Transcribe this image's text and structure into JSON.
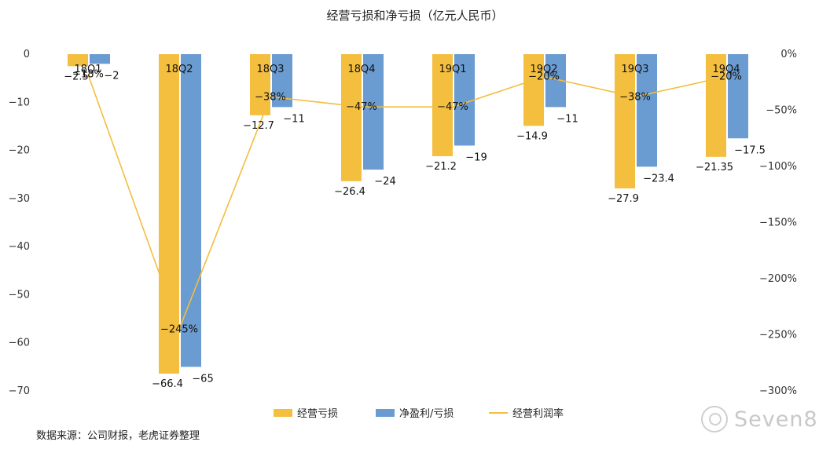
{
  "chart_data": {
    "type": "bar",
    "title": "经营亏损和净亏损（亿元人民币）",
    "categories": [
      "18Q1",
      "18Q2",
      "18Q3",
      "18Q4",
      "19Q1",
      "19Q2",
      "19Q3",
      "19Q4"
    ],
    "series": [
      {
        "name": "经营亏损",
        "type": "bar",
        "axis": "left",
        "color": "#F4BE3F",
        "values": [
          -2.5,
          -66.4,
          -12.7,
          -26.4,
          -21.2,
          -14.9,
          -27.9,
          -21.35
        ],
        "labels": [
          "−2.5",
          "−66.4",
          "−12.7",
          "−26.4",
          "−21.2",
          "−14.9",
          "−27.9",
          "−21.35"
        ]
      },
      {
        "name": "净盈利/亏损",
        "type": "bar",
        "axis": "left",
        "color": "#6A9BD1",
        "values": [
          -2,
          -65,
          -11,
          -24,
          -19,
          -11,
          -23.4,
          -17.5
        ],
        "labels": [
          "−2",
          "−65",
          "−11",
          "−24",
          "−19",
          "−11",
          "−23.4",
          "−17.5"
        ]
      },
      {
        "name": "经营利润率",
        "type": "line",
        "axis": "right",
        "color": "#F4BE3F",
        "values": [
          -18,
          -245,
          -38,
          -47,
          -47,
          -20,
          -38,
          -20
        ],
        "labels": [
          "−18%",
          "−245%",
          "−38%",
          "−47%",
          "−47%",
          "−20%",
          "−38%",
          "−20%"
        ]
      }
    ],
    "y_left": {
      "ylim": [
        -70,
        0
      ],
      "ticks": [
        "0",
        "−10",
        "−20",
        "−30",
        "−40",
        "−50",
        "−60",
        "−70"
      ]
    },
    "y_right": {
      "ylim": [
        -300,
        0
      ],
      "ticks": [
        "0%",
        "−50%",
        "−100%",
        "−150%",
        "−200%",
        "−250%",
        "−300%"
      ]
    },
    "legend_position": "bottom",
    "grid": false
  },
  "source_text": "数据来源：公司财报，老虎证券整理",
  "watermark_text": "Seven8"
}
